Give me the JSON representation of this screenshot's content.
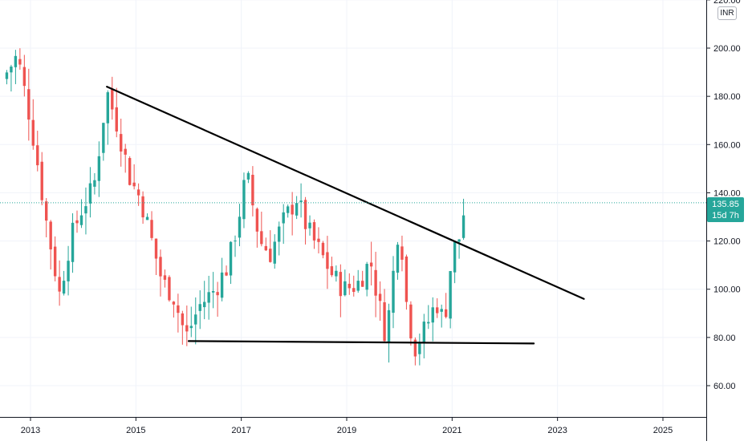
{
  "chart_data": {
    "type": "candlestick",
    "instrument_currency": "INR",
    "ylim": [
      45,
      225
    ],
    "xlim": [
      2012.55,
      2025.8
    ],
    "y_ticks": [
      "60.00",
      "80.00",
      "100.00",
      "120.00",
      "140.00",
      "160.00",
      "180.00",
      "200.00",
      "220.00"
    ],
    "x_ticks": [
      "2013",
      "2015",
      "2017",
      "2019",
      "2021",
      "2023",
      "2025"
    ],
    "last_price": "135.85",
    "countdown": "15d 7h",
    "colors": {
      "up": "#26a69a",
      "down": "#ef5350",
      "trendline": "#000000",
      "grid": "#f0f3fa"
    },
    "trendlines": [
      {
        "name": "descending-resistance",
        "x1": 2014.45,
        "y1": 184,
        "x2": 2023.5,
        "y2": 96
      },
      {
        "name": "horizontal-support",
        "x1": 2016.0,
        "y1": 78.5,
        "x2": 2022.55,
        "y2": 77.5
      }
    ],
    "anchors": [
      [
        2012.55,
        190
      ],
      [
        2012.75,
        197
      ],
      [
        2013.0,
        170
      ],
      [
        2013.15,
        150
      ],
      [
        2013.3,
        128
      ],
      [
        2013.55,
        98
      ],
      [
        2013.75,
        120
      ],
      [
        2014.0,
        135
      ],
      [
        2014.2,
        142
      ],
      [
        2014.45,
        182
      ],
      [
        2014.65,
        168
      ],
      [
        2014.9,
        145
      ],
      [
        2015.1,
        137
      ],
      [
        2015.3,
        120
      ],
      [
        2015.5,
        103
      ],
      [
        2015.7,
        98
      ],
      [
        2015.95,
        80
      ],
      [
        2016.2,
        93
      ],
      [
        2016.5,
        100
      ],
      [
        2016.75,
        110
      ],
      [
        2016.95,
        130
      ],
      [
        2017.1,
        148
      ],
      [
        2017.35,
        120
      ],
      [
        2017.55,
        115
      ],
      [
        2017.8,
        128
      ],
      [
        2018.05,
        138
      ],
      [
        2018.25,
        125
      ],
      [
        2018.5,
        115
      ],
      [
        2018.75,
        105
      ],
      [
        2018.95,
        100
      ],
      [
        2019.2,
        102
      ],
      [
        2019.45,
        112
      ],
      [
        2019.6,
        95
      ],
      [
        2019.75,
        80
      ],
      [
        2019.9,
        110
      ],
      [
        2020.0,
        130
      ],
      [
        2020.15,
        90
      ],
      [
        2020.3,
        76
      ],
      [
        2020.5,
        84
      ],
      [
        2020.7,
        95
      ],
      [
        2020.85,
        86
      ],
      [
        2021.0,
        115
      ],
      [
        2021.15,
        122
      ],
      [
        2021.25,
        136
      ]
    ]
  }
}
